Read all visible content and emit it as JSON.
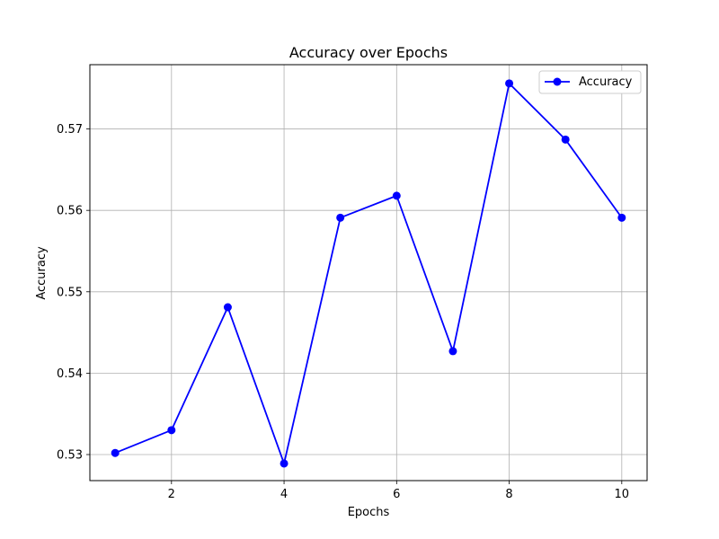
{
  "chart_data": {
    "type": "line",
    "title": "Accuracy over Epochs",
    "xlabel": "Epochs",
    "ylabel": "Accuracy",
    "xlim": [
      0.55,
      10.45
    ],
    "ylim": [
      0.5268,
      0.5779
    ],
    "x_ticks": [
      2,
      4,
      6,
      8,
      10
    ],
    "x_tick_labels": [
      "2",
      "4",
      "6",
      "8",
      "10"
    ],
    "y_ticks": [
      0.53,
      0.54,
      0.55,
      0.56,
      0.57
    ],
    "y_tick_labels": [
      "0.53",
      "0.54",
      "0.55",
      "0.56",
      "0.57"
    ],
    "grid": true,
    "legend_position": "top-right",
    "series": [
      {
        "name": "Accuracy",
        "color": "#0000ff",
        "marker": "circle",
        "x": [
          1,
          2,
          3,
          4,
          5,
          6,
          7,
          8,
          9,
          10
        ],
        "values": [
          0.5302,
          0.533,
          0.5481,
          0.5289,
          0.5591,
          0.5618,
          0.5427,
          0.5756,
          0.5687,
          0.5591
        ]
      }
    ]
  }
}
